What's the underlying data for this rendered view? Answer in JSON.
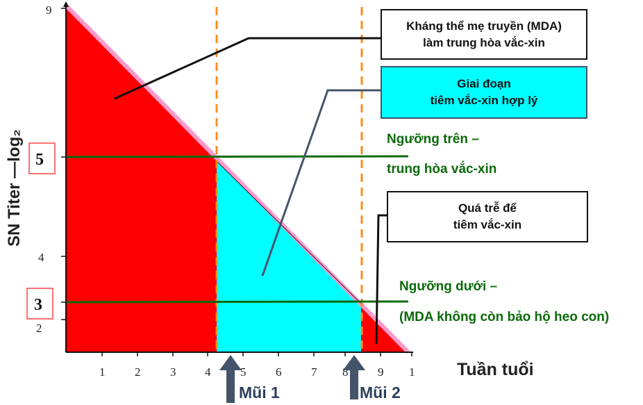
{
  "y_axis": {
    "label": "SN Titer —log₂",
    "ticks": [
      "9",
      "5",
      "4",
      "3",
      "2"
    ],
    "highlighted": [
      "5",
      "3"
    ]
  },
  "x_axis": {
    "label": "Tuần tuổi",
    "ticks": [
      "1",
      "2",
      "3",
      "4",
      "5",
      "6",
      "7",
      "8",
      "9",
      "1"
    ]
  },
  "callouts": {
    "mda": {
      "line1": "Kháng thể mẹ truyền (MDA)",
      "line2": "làm trung hòa vắc-xin"
    },
    "window": {
      "line1": "Giai đoạn",
      "line2": "tiêm vắc-xin hợp lý"
    },
    "late": {
      "line1": "Quá trễ để",
      "line2": "tiêm vắc-xin"
    }
  },
  "thresholds": {
    "upper": {
      "line1": "Ngưỡng trên –",
      "line2": "trung hòa vắc-xin"
    },
    "lower": {
      "line1": "Ngưỡng dưới –",
      "line2": "(MDA không còn bảo hộ heo con)"
    }
  },
  "doses": {
    "dose1": "Mũi 1",
    "dose2": "Mũi 2"
  },
  "colors": {
    "mda_region": "#ff0000",
    "window_region": "#00ffff",
    "threshold": "#0b6a0b",
    "dashed": "#ff8c1a",
    "decline_line": "#ff99cc",
    "arrow": "#44546a"
  }
}
